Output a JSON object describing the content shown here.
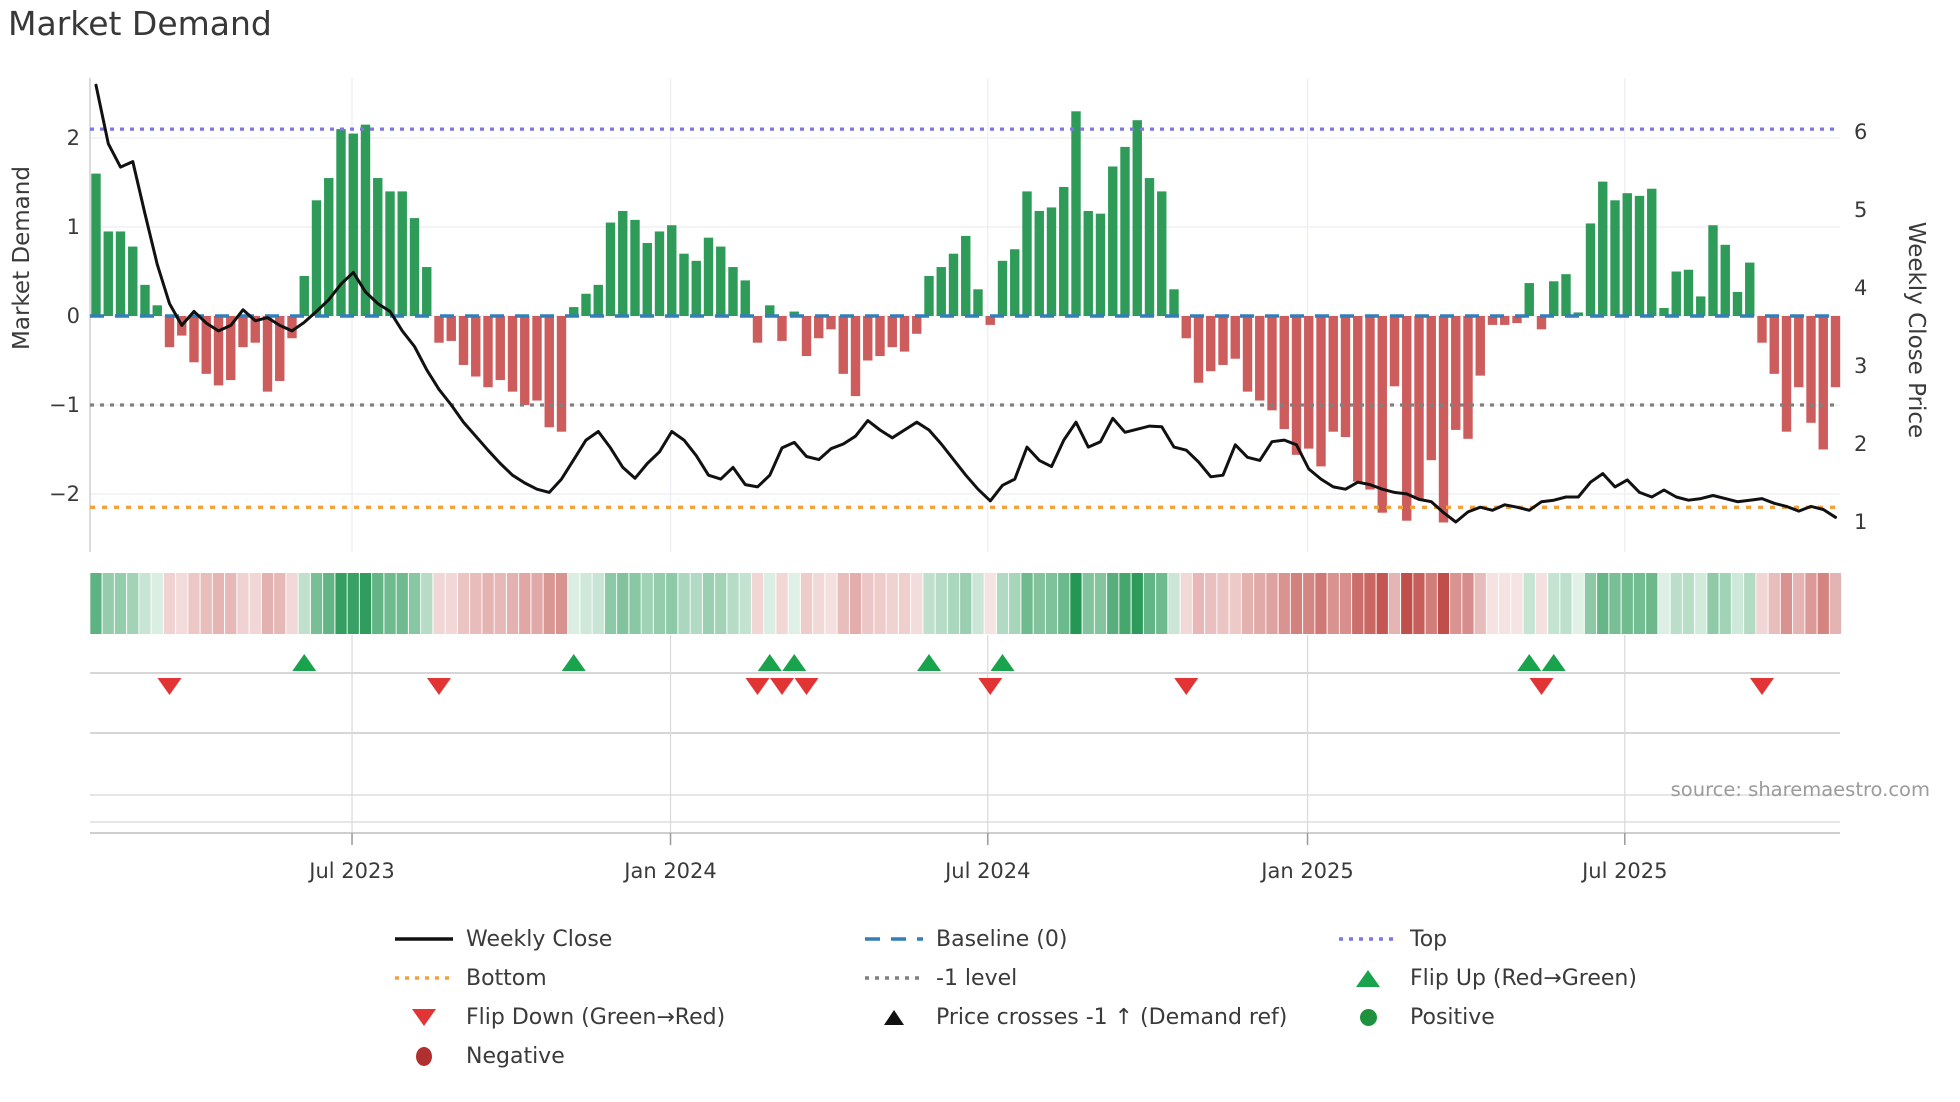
{
  "title": "Market Demand",
  "source": "source: sharemaestro.com",
  "left_axis": {
    "label": "Market Demand",
    "ticks": [
      "2",
      "1",
      "0",
      "−1",
      "−2"
    ],
    "values": [
      2,
      1,
      0,
      -1,
      -2
    ]
  },
  "right_axis": {
    "label": "Weekly Close Price",
    "ticks": [
      "6",
      "5",
      "4",
      "3",
      "2",
      "1"
    ],
    "values": [
      6,
      5,
      4,
      3,
      2,
      1
    ]
  },
  "x_axis": {
    "ticks": [
      "Jul 2023",
      "Jan 2024",
      "Jul 2024",
      "Jan 2025",
      "Jul 2025"
    ]
  },
  "colors": {
    "positive_bar": "#2e9b58",
    "negative_bar": "#cd5c5c",
    "price_line": "#111111",
    "baseline": "#337eb8",
    "top": "#7e76e3",
    "bottom": "#f2a23c",
    "minus1": "#808080",
    "flip_up": "#1aa34d",
    "flip_down": "#e23434",
    "positive_dot": "#1f9240",
    "negative_dot": "#b03030",
    "grid": "#ededf3"
  },
  "legend": {
    "items": [
      {
        "label": "Weekly Close",
        "marker": "line-black"
      },
      {
        "label": "Bottom",
        "marker": "dotted-orange"
      },
      {
        "label": "Flip Down (Green→Red)",
        "marker": "triangle-down-red"
      },
      {
        "label": "Negative",
        "marker": "dot-darkred"
      },
      {
        "label": "Baseline (0)",
        "marker": "dashed-blue"
      },
      {
        "label": "-1 level",
        "marker": "dotted-gray"
      },
      {
        "label": "Price crosses -1 ↑ (Demand ref)",
        "marker": "triangle-up-black"
      },
      {
        "label": "Top",
        "marker": "dotted-purple"
      },
      {
        "label": "Flip Up (Red→Green)",
        "marker": "triangle-up-green"
      },
      {
        "label": "Positive",
        "marker": "dot-green"
      }
    ]
  },
  "chart_data": {
    "type": "bar+line",
    "x_unit": "weeks",
    "n_weeks": 143,
    "x_range_note": "weekly data from Feb 2023 to Nov 2025",
    "x_tick_positions": [
      20.9,
      46.9,
      72.8,
      98.9,
      124.8
    ],
    "left_ylim": [
      -2.65,
      2.65
    ],
    "right_ylim": [
      0.6,
      6.9
    ],
    "top_level": 2.1,
    "baseline": 0,
    "minus1_level": -1,
    "bottom_level": -2.15,
    "grid": true,
    "legend_position": "bottom",
    "demand": [
      1.6,
      0.95,
      0.95,
      0.78,
      0.35,
      0.12,
      -0.35,
      -0.22,
      -0.52,
      -0.65,
      -0.78,
      -0.72,
      -0.35,
      -0.3,
      -0.85,
      -0.73,
      -0.25,
      0.45,
      1.3,
      1.55,
      2.1,
      2.05,
      2.15,
      1.55,
      1.4,
      1.4,
      1.1,
      0.55,
      -0.3,
      -0.28,
      -0.55,
      -0.68,
      -0.8,
      -0.72,
      -0.85,
      -1.0,
      -0.95,
      -1.25,
      -1.3,
      0.1,
      0.25,
      0.35,
      1.05,
      1.18,
      1.08,
      0.82,
      0.95,
      1.02,
      0.7,
      0.62,
      0.88,
      0.78,
      0.55,
      0.4,
      -0.3,
      0.12,
      -0.28,
      0.05,
      -0.45,
      -0.25,
      -0.15,
      -0.65,
      -0.9,
      -0.5,
      -0.45,
      -0.35,
      -0.4,
      -0.2,
      0.45,
      0.55,
      0.7,
      0.9,
      0.3,
      -0.1,
      0.62,
      0.75,
      1.4,
      1.18,
      1.22,
      1.45,
      2.3,
      1.18,
      1.15,
      1.68,
      1.9,
      2.2,
      1.55,
      1.4,
      0.3,
      -0.25,
      -0.75,
      -0.62,
      -0.55,
      -0.48,
      -0.85,
      -0.95,
      -1.06,
      -1.27,
      -1.56,
      -1.49,
      -1.69,
      -1.3,
      -1.36,
      -1.86,
      -1.95,
      -2.21,
      -0.79,
      -2.3,
      -2.06,
      -1.62,
      -2.32,
      -1.28,
      -1.38,
      -0.67,
      -0.1,
      -0.1,
      -0.08,
      0.37,
      -0.15,
      0.39,
      0.47,
      0.04,
      1.04,
      1.51,
      1.3,
      1.38,
      1.35,
      1.43,
      0.09,
      0.5,
      0.52,
      0.22,
      1.02,
      0.8,
      0.27,
      0.6,
      -0.3,
      -0.65,
      -1.3,
      -0.8,
      -1.2,
      -1.5,
      -0.8
    ],
    "price": [
      6.6,
      5.85,
      5.55,
      5.62,
      4.95,
      4.3,
      3.8,
      3.52,
      3.7,
      3.55,
      3.45,
      3.52,
      3.72,
      3.58,
      3.62,
      3.52,
      3.45,
      3.56,
      3.7,
      3.85,
      4.05,
      4.2,
      3.95,
      3.8,
      3.7,
      3.45,
      3.25,
      2.95,
      2.7,
      2.5,
      2.28,
      2.1,
      1.92,
      1.75,
      1.6,
      1.5,
      1.42,
      1.38,
      1.55,
      1.8,
      2.05,
      2.16,
      1.95,
      1.7,
      1.56,
      1.75,
      1.9,
      2.16,
      2.05,
      1.85,
      1.6,
      1.55,
      1.7,
      1.48,
      1.45,
      1.6,
      1.95,
      2.02,
      1.84,
      1.8,
      1.94,
      2.0,
      2.1,
      2.3,
      2.18,
      2.08,
      2.18,
      2.28,
      2.18,
      2.0,
      1.8,
      1.6,
      1.42,
      1.27,
      1.47,
      1.55,
      1.96,
      1.79,
      1.71,
      2.05,
      2.28,
      1.96,
      2.03,
      2.33,
      2.15,
      2.19,
      2.23,
      2.22,
      1.96,
      1.92,
      1.77,
      1.58,
      1.6,
      1.99,
      1.83,
      1.79,
      2.03,
      2.05,
      1.99,
      1.68,
      1.55,
      1.45,
      1.42,
      1.51,
      1.48,
      1.42,
      1.38,
      1.36,
      1.29,
      1.26,
      1.12,
      1.0,
      1.13,
      1.19,
      1.15,
      1.22,
      1.19,
      1.15,
      1.26,
      1.28,
      1.32,
      1.32,
      1.51,
      1.62,
      1.45,
      1.54,
      1.38,
      1.32,
      1.41,
      1.32,
      1.28,
      1.3,
      1.34,
      1.3,
      1.26,
      1.28,
      1.3,
      1.24,
      1.2,
      1.14,
      1.2,
      1.16,
      1.06
    ],
    "flip_up_weeks": [
      17,
      39,
      55,
      57,
      68,
      74,
      117,
      119
    ],
    "flip_down_weeks": [
      6,
      28,
      54,
      56,
      58,
      73,
      89,
      118,
      136
    ],
    "price_cross_up_weeks": []
  }
}
